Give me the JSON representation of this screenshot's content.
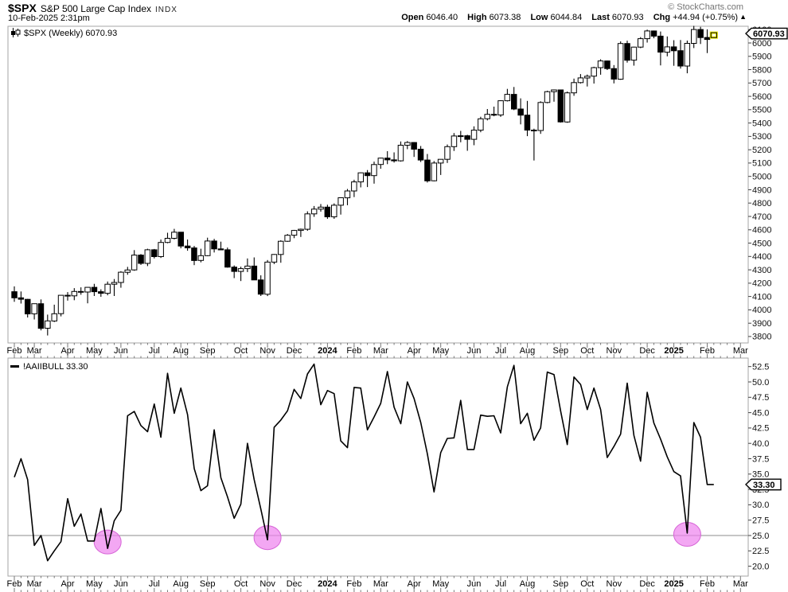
{
  "header": {
    "symbol": "$SPX",
    "name": "S&P 500 Large Cap Index",
    "exchange": "INDX",
    "timestamp": "10-Feb-2025 2:31pm",
    "copyright": "© StockCharts.com",
    "quote": {
      "open_label": "Open",
      "open_value": "6046.40",
      "high_label": "High",
      "high_value": "6073.38",
      "low_label": "Low",
      "low_value": "6044.84",
      "last_label": "Last",
      "last_value": "6070.93",
      "chg_label": "Chg",
      "chg_value": "+44.94 (+0.75%)",
      "direction_icon": "▲"
    }
  },
  "price_panel": {
    "legend": "$SPX (Weekly) 6070.93",
    "last_price_label": "6070.93",
    "y_ticks": [
      "6100",
      "6000",
      "5900",
      "5800",
      "5700",
      "5600",
      "5500",
      "5400",
      "5300",
      "5200",
      "5100",
      "5000",
      "4900",
      "4800",
      "4700",
      "4600",
      "4500",
      "4400",
      "4300",
      "4200",
      "4100",
      "4000",
      "3900",
      "3800"
    ]
  },
  "indicator_panel": {
    "legend": "!AAIIBULL 33.30",
    "last_value_label": "33.30",
    "y_ticks": [
      "52.5",
      "50.0",
      "47.5",
      "45.0",
      "42.5",
      "40.0",
      "37.5",
      "35.0",
      "32.5",
      "30.0",
      "27.5",
      "25.0",
      "22.5",
      "20.0"
    ]
  },
  "x_axis": {
    "labels": [
      {
        "t": "Feb",
        "i": 0
      },
      {
        "t": "Mar",
        "i": 3
      },
      {
        "t": "Apr",
        "i": 8
      },
      {
        "t": "May",
        "i": 12
      },
      {
        "t": "Jun",
        "i": 16
      },
      {
        "t": "Jul",
        "i": 21
      },
      {
        "t": "Aug",
        "i": 25
      },
      {
        "t": "Sep",
        "i": 29
      },
      {
        "t": "Oct",
        "i": 34
      },
      {
        "t": "Nov",
        "i": 38
      },
      {
        "t": "Dec",
        "i": 42
      },
      {
        "t": "2024",
        "i": 47,
        "b": true
      },
      {
        "t": "Feb",
        "i": 51
      },
      {
        "t": "Mar",
        "i": 55
      },
      {
        "t": "Apr",
        "i": 60
      },
      {
        "t": "May",
        "i": 64
      },
      {
        "t": "Jun",
        "i": 69
      },
      {
        "t": "Jul",
        "i": 73
      },
      {
        "t": "Aug",
        "i": 77
      },
      {
        "t": "Sep",
        "i": 82
      },
      {
        "t": "Oct",
        "i": 86
      },
      {
        "t": "Nov",
        "i": 90
      },
      {
        "t": "Dec",
        "i": 95
      },
      {
        "t": "2025",
        "i": 99,
        "b": true
      },
      {
        "t": "Feb",
        "i": 104
      },
      {
        "t": "Mar",
        "i": 109
      }
    ]
  },
  "chart_data": [
    {
      "type": "candlestick",
      "symbol": "$SPX",
      "timeframe": "Weekly",
      "x_range": "Feb 2023 - Feb 2025",
      "ylim": [
        3750,
        6125
      ],
      "last_close": 6070.93,
      "highlight_last": true,
      "candles": [
        [
          4136,
          4176,
          4060,
          4090
        ],
        [
          4090,
          4138,
          4047,
          4079
        ],
        [
          4079,
          4082,
          3943,
          3970
        ],
        [
          3970,
          4048,
          3928,
          4046
        ],
        [
          4046,
          4078,
          3846,
          3862
        ],
        [
          3862,
          3964,
          3808,
          3917
        ],
        [
          3917,
          4039,
          3909,
          3971
        ],
        [
          3971,
          4110,
          3951,
          4109
        ],
        [
          4109,
          4133,
          4069,
          4105
        ],
        [
          4105,
          4163,
          4072,
          4138
        ],
        [
          4138,
          4169,
          4113,
          4134
        ],
        [
          4134,
          4170,
          4049,
          4169
        ],
        [
          4169,
          4195,
          4104,
          4136
        ],
        [
          4136,
          4154,
          4098,
          4124
        ],
        [
          4124,
          4212,
          4109,
          4192
        ],
        [
          4192,
          4231,
          4104,
          4205
        ],
        [
          4205,
          4290,
          4166,
          4282
        ],
        [
          4282,
          4322,
          4263,
          4299
        ],
        [
          4299,
          4448,
          4293,
          4410
        ],
        [
          4410,
          4418,
          4337,
          4348
        ],
        [
          4348,
          4458,
          4328,
          4450
        ],
        [
          4450,
          4456,
          4385,
          4399
        ],
        [
          4399,
          4527,
          4389,
          4505
        ],
        [
          4505,
          4578,
          4499,
          4536
        ],
        [
          4536,
          4607,
          4528,
          4582
        ],
        [
          4582,
          4584,
          4461,
          4478
        ],
        [
          4478,
          4527,
          4443,
          4464
        ],
        [
          4464,
          4479,
          4335,
          4370
        ],
        [
          4370,
          4458,
          4356,
          4406
        ],
        [
          4406,
          4541,
          4402,
          4516
        ],
        [
          4516,
          4532,
          4430,
          4457
        ],
        [
          4457,
          4511,
          4447,
          4450
        ],
        [
          4450,
          4467,
          4316,
          4320
        ],
        [
          4320,
          4333,
          4238,
          4288
        ],
        [
          4288,
          4324,
          4216,
          4309
        ],
        [
          4309,
          4385,
          4283,
          4328
        ],
        [
          4328,
          4393,
          4223,
          4224
        ],
        [
          4224,
          4259,
          4104,
          4117
        ],
        [
          4117,
          4373,
          4103,
          4358
        ],
        [
          4358,
          4418,
          4343,
          4415
        ],
        [
          4415,
          4521,
          4353,
          4514
        ],
        [
          4514,
          4568,
          4510,
          4559
        ],
        [
          4559,
          4599,
          4537,
          4595
        ],
        [
          4595,
          4609,
          4546,
          4604
        ],
        [
          4604,
          4738,
          4593,
          4719
        ],
        [
          4719,
          4778,
          4697,
          4755
        ],
        [
          4755,
          4793,
          4736,
          4770
        ],
        [
          4770,
          4788,
          4682,
          4697
        ],
        [
          4697,
          4798,
          4682,
          4784
        ],
        [
          4784,
          4842,
          4714,
          4840
        ],
        [
          4840,
          4906,
          4784,
          4891
        ],
        [
          4891,
          4975,
          4845,
          4959
        ],
        [
          4959,
          5030,
          4918,
          5027
        ],
        [
          5027,
          5048,
          4920,
          5006
        ],
        [
          5006,
          5111,
          4946,
          5089
        ],
        [
          5089,
          5140,
          5057,
          5137
        ],
        [
          5137,
          5189,
          5092,
          5124
        ],
        [
          5124,
          5180,
          5104,
          5117
        ],
        [
          5117,
          5262,
          5111,
          5234
        ],
        [
          5234,
          5265,
          5204,
          5254
        ],
        [
          5254,
          5257,
          5146,
          5204
        ],
        [
          5204,
          5228,
          5108,
          5123
        ],
        [
          5123,
          5168,
          4954,
          4967
        ],
        [
          4967,
          5115,
          4963,
          5100
        ],
        [
          5100,
          5128,
          5011,
          5128
        ],
        [
          5128,
          5239,
          5101,
          5223
        ],
        [
          5223,
          5325,
          5191,
          5303
        ],
        [
          5303,
          5341,
          5256,
          5305
        ],
        [
          5305,
          5312,
          5192,
          5278
        ],
        [
          5278,
          5375,
          5234,
          5347
        ],
        [
          5347,
          5447,
          5331,
          5432
        ],
        [
          5432,
          5505,
          5420,
          5465
        ],
        [
          5465,
          5523,
          5451,
          5460
        ],
        [
          5460,
          5570,
          5446,
          5567
        ],
        [
          5567,
          5656,
          5562,
          5615
        ],
        [
          5615,
          5670,
          5497,
          5505
        ],
        [
          5505,
          5585,
          5390,
          5459
        ],
        [
          5459,
          5566,
          5302,
          5347
        ],
        [
          5347,
          5358,
          5119,
          5344
        ],
        [
          5344,
          5563,
          5319,
          5554
        ],
        [
          5554,
          5642,
          5548,
          5635
        ],
        [
          5635,
          5652,
          5560,
          5648
        ],
        [
          5648,
          5651,
          5403,
          5408
        ],
        [
          5408,
          5636,
          5402,
          5626
        ],
        [
          5626,
          5733,
          5604,
          5703
        ],
        [
          5703,
          5767,
          5696,
          5738
        ],
        [
          5738,
          5763,
          5674,
          5751
        ],
        [
          5751,
          5822,
          5696,
          5815
        ],
        [
          5815,
          5878,
          5762,
          5865
        ],
        [
          5865,
          5868,
          5797,
          5808
        ],
        [
          5808,
          5834,
          5697,
          5729
        ],
        [
          5729,
          6012,
          5724,
          5996
        ],
        [
          5996,
          6017,
          5853,
          5871
        ],
        [
          5871,
          5972,
          5830,
          5969
        ],
        [
          5969,
          6044,
          5961,
          6032
        ],
        [
          6032,
          6100,
          6003,
          6090
        ],
        [
          6090,
          6093,
          6035,
          6051
        ],
        [
          6051,
          6086,
          5832,
          5931
        ],
        [
          5931,
          6049,
          5900,
          5971
        ],
        [
          5971,
          6021,
          5829,
          5942
        ],
        [
          5942,
          6022,
          5808,
          5827
        ],
        [
          5827,
          6018,
          5773,
          5997
        ],
        [
          5997,
          6128,
          5962,
          6101
        ],
        [
          6101,
          6121,
          5992,
          6041
        ],
        [
          6041,
          6102,
          5924,
          6026
        ],
        [
          6046.4,
          6073.38,
          6044.84,
          6070.93
        ]
      ]
    },
    {
      "type": "line",
      "name": "!AAIIBULL",
      "last_value": 33.3,
      "ylim": [
        18.5,
        53.5
      ],
      "hline": 25.0,
      "annotation_color": "#ee82ee",
      "values": [
        34.5,
        37.5,
        34.1,
        23.4,
        25.0,
        20.9,
        22.5,
        24.0,
        31.0,
        26.5,
        28.5,
        24.1,
        24.1,
        29.4,
        22.9,
        27.4,
        29.1,
        44.5,
        45.2,
        42.9,
        41.9,
        46.4,
        41.0,
        51.4,
        44.9,
        49.0,
        44.7,
        35.9,
        32.3,
        33.1,
        42.2,
        34.4,
        31.3,
        27.8,
        30.1,
        40.0,
        34.1,
        29.3,
        24.3,
        42.6,
        43.8,
        45.3,
        48.8,
        47.3,
        51.3,
        52.9,
        46.3,
        48.6,
        48.1,
        40.4,
        39.3,
        49.1,
        49.0,
        42.2,
        44.3,
        46.5,
        51.7,
        45.9,
        43.2,
        50.0,
        47.3,
        43.4,
        38.3,
        32.1,
        38.5,
        40.8,
        40.9,
        47.0,
        39.0,
        39.0,
        44.6,
        44.4,
        44.5,
        41.7,
        49.2,
        52.7,
        43.2,
        44.9,
        40.5,
        42.5,
        51.6,
        51.2,
        45.3,
        39.8,
        50.8,
        49.6,
        45.5,
        49.0,
        45.5,
        37.7,
        39.5,
        41.5,
        49.8,
        41.3,
        37.1,
        48.3,
        43.3,
        40.7,
        37.8,
        35.4,
        34.7,
        25.4,
        43.4,
        41.0,
        33.3,
        33.3
      ],
      "annotations": [
        {
          "index": 14,
          "value": 22.9
        },
        {
          "index": 38,
          "value": 24.3
        },
        {
          "index": 101,
          "value": 25.4
        }
      ]
    }
  ]
}
